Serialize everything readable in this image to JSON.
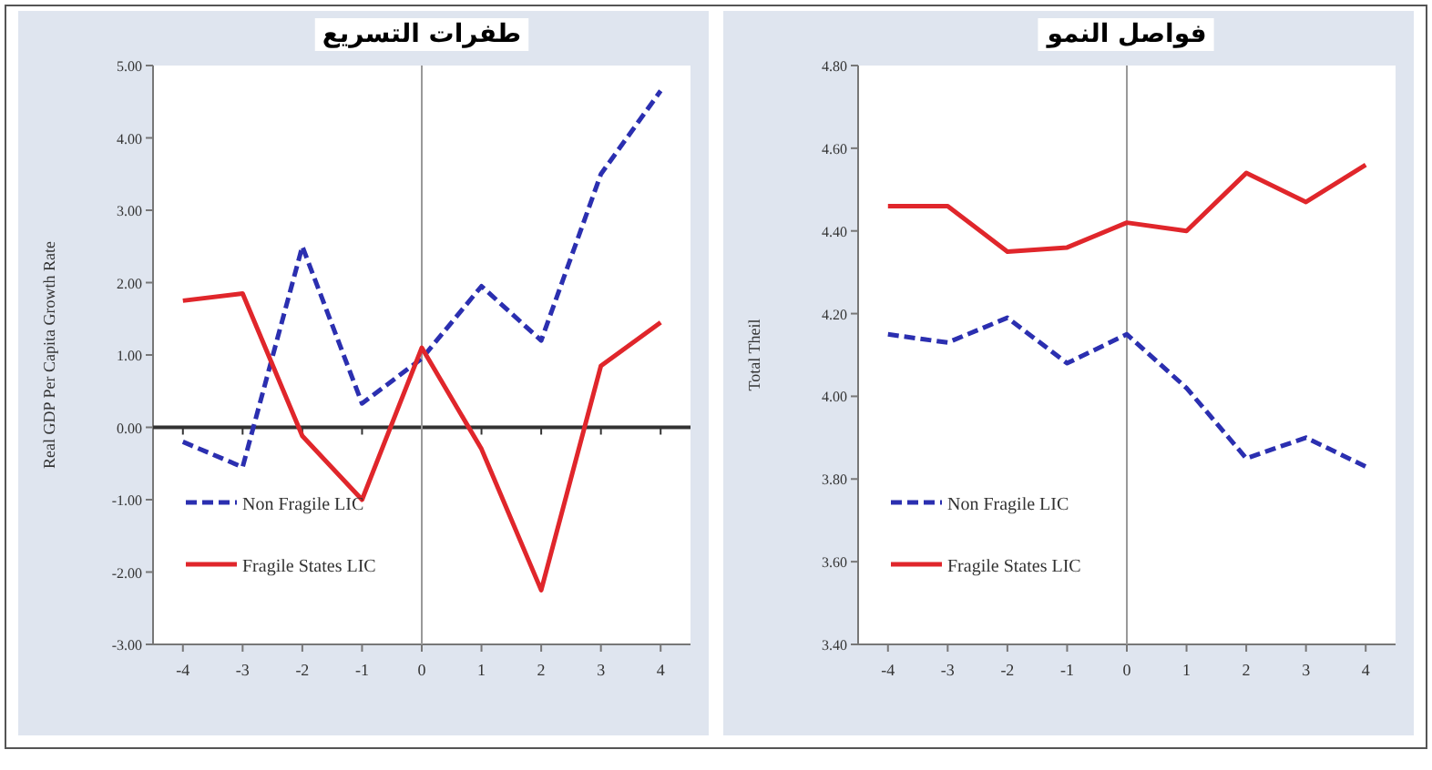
{
  "chart_data": [
    {
      "type": "line",
      "title": "طفرات التسريع",
      "ylabel": "Real GDP Per Capita Growth Rate",
      "x": [
        -4,
        -3,
        -2,
        -1,
        0,
        1,
        2,
        3,
        4
      ],
      "series": [
        {
          "name": "Non Fragile LIC",
          "color": "#2b2fb0",
          "line_style": "dashed",
          "values": [
            -0.2,
            -0.55,
            2.5,
            0.33,
            0.95,
            1.95,
            1.2,
            3.5,
            4.65
          ]
        },
        {
          "name": "Fragile States LIC",
          "color": "#e0262b",
          "line_style": "solid",
          "values": [
            1.75,
            1.85,
            -0.12,
            -1.0,
            1.1,
            -0.3,
            -2.25,
            0.85,
            1.45
          ]
        }
      ],
      "xlim": [
        -4.5,
        4.5
      ],
      "xticks": [
        -4,
        -3,
        -2,
        -1,
        0,
        1,
        2,
        3,
        4
      ],
      "ylim": [
        -3,
        5
      ],
      "yticks": [
        {
          "value": -3,
          "label": "-3.00"
        },
        {
          "value": -2,
          "label": "-2.00"
        },
        {
          "value": -1,
          "label": "-1.00"
        },
        {
          "value": 0,
          "label": "0.00"
        },
        {
          "value": 1,
          "label": "1.00"
        },
        {
          "value": 2,
          "label": "2.00"
        },
        {
          "value": 3,
          "label": "3.00"
        },
        {
          "value": 4,
          "label": "4.00"
        },
        {
          "value": 5,
          "label": "5.00"
        }
      ],
      "ref_lines": [
        {
          "axis": "y",
          "value": 0,
          "color": "#333333"
        },
        {
          "axis": "x",
          "value": 0,
          "color": "#999999"
        }
      ],
      "grid": false,
      "legend": "bottom left",
      "marker": "none"
    },
    {
      "type": "line",
      "title": "فواصل النمو",
      "ylabel": "Total Theil",
      "x": [
        -4,
        -3,
        -2,
        -1,
        0,
        1,
        2,
        3,
        4
      ],
      "series": [
        {
          "name": "Non Fragile LIC",
          "color": "#2b2fb0",
          "line_style": "dashed",
          "values": [
            4.15,
            4.13,
            4.19,
            4.08,
            4.15,
            4.02,
            3.85,
            3.9,
            3.83
          ]
        },
        {
          "name": "Fragile States LIC",
          "color": "#e0262b",
          "line_style": "solid",
          "values": [
            4.46,
            4.46,
            4.35,
            4.36,
            4.42,
            4.4,
            4.54,
            4.47,
            4.56
          ]
        }
      ],
      "xlim": [
        -4.5,
        4.5
      ],
      "xticks": [
        -4,
        -3,
        -2,
        -1,
        0,
        1,
        2,
        3,
        4
      ],
      "ylim": [
        3.4,
        4.8
      ],
      "yticks": [
        {
          "value": 3.4,
          "label": "3.40"
        },
        {
          "value": 3.6,
          "label": "3.60"
        },
        {
          "value": 3.8,
          "label": "3.80"
        },
        {
          "value": 4.0,
          "label": "4.00"
        },
        {
          "value": 4.2,
          "label": "4.20"
        },
        {
          "value": 4.4,
          "label": "4.40"
        },
        {
          "value": 4.6,
          "label": "4.60"
        },
        {
          "value": 4.8,
          "label": "4.80"
        }
      ],
      "ref_lines": [
        {
          "axis": "x",
          "value": 0,
          "color": "#999999"
        }
      ],
      "grid": false,
      "legend": "bottom left",
      "marker": "none"
    }
  ]
}
